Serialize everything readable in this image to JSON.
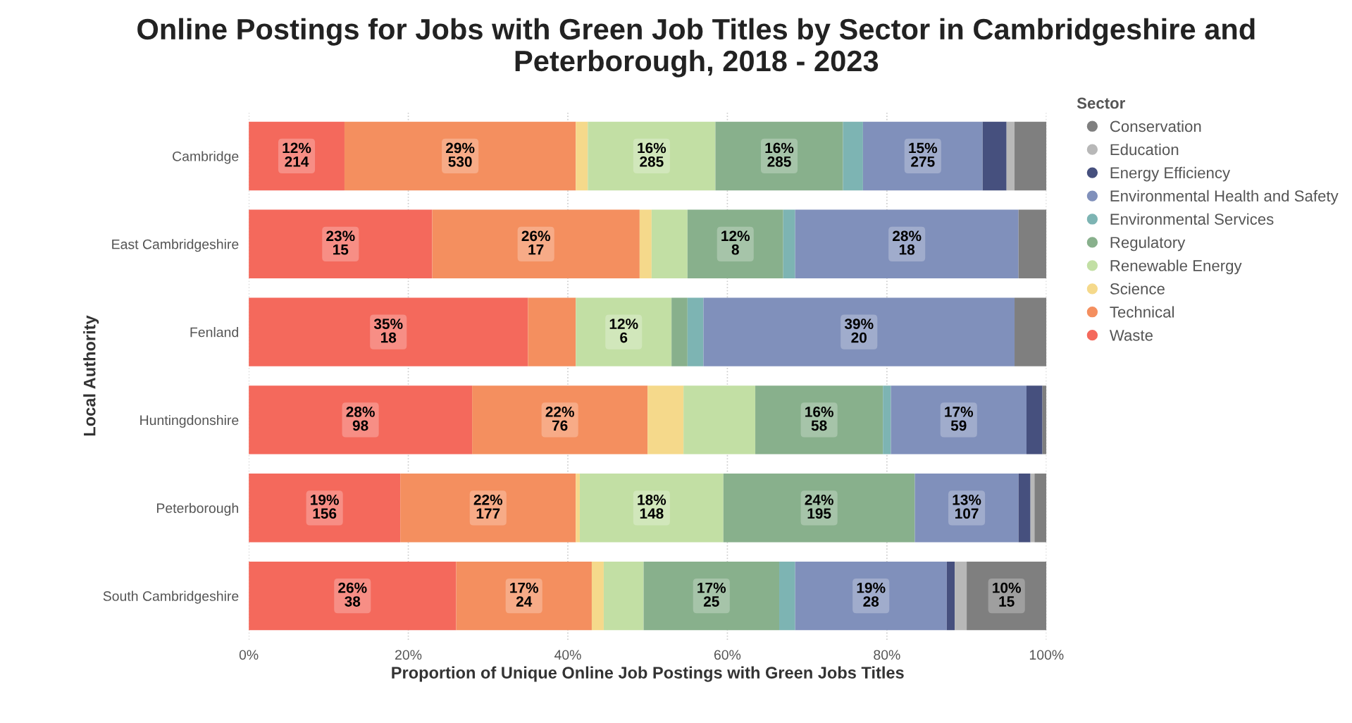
{
  "chart_data": {
    "type": "bar",
    "orientation": "horizontal",
    "stacked": true,
    "title": "Online Postings for Jobs with Green Job Titles by Sector in Cambridgeshire and Peterborough, 2018 - 2023",
    "xlabel": "Proportion of Unique Online Job Postings with Green Jobs Titles",
    "ylabel": "Local Authority",
    "legend_title": "Sector",
    "categories": [
      "Cambridge",
      "East Cambridgeshire",
      "Fenland",
      "Huntingdonshire",
      "Peterborough",
      "South Cambridgeshire"
    ],
    "xlim": [
      0,
      100
    ],
    "xticks": [
      {
        "value": 0,
        "label": "0%"
      },
      {
        "value": 20,
        "label": "20%"
      },
      {
        "value": 40,
        "label": "40%"
      },
      {
        "value": 60,
        "label": "60%"
      },
      {
        "value": 80,
        "label": "80%"
      },
      {
        "value": 100,
        "label": "100%"
      }
    ],
    "grid": "x",
    "legend": "right",
    "marker": "circle",
    "series": [
      {
        "name": "Waste",
        "color": "#f4695c",
        "values": [
          12,
          23,
          35,
          28,
          19,
          26
        ],
        "value_labels": [
          "12%\n214",
          "23%\n15",
          "35%\n18",
          "28%\n98",
          "19%\n156",
          "26%\n38"
        ]
      },
      {
        "name": "Technical",
        "color": "#f48f5f",
        "values": [
          29,
          26,
          6,
          22,
          22,
          17
        ],
        "value_labels": [
          "29%\n530",
          "26%\n17",
          null,
          "22%\n76",
          "22%\n177",
          "17%\n24"
        ]
      },
      {
        "name": "Science",
        "color": "#f5d98b",
        "values": [
          1.5,
          1.5,
          null,
          4.5,
          0.5,
          1.5
        ],
        "value_labels": [
          null,
          null,
          null,
          null,
          null,
          null
        ]
      },
      {
        "name": "Renewable Energy",
        "color": "#c2dfa4",
        "values": [
          16,
          4.5,
          12,
          9,
          18,
          5
        ],
        "value_labels": [
          "16%\n285",
          null,
          "12%\n6",
          null,
          "18%\n148",
          null
        ]
      },
      {
        "name": "Regulatory",
        "color": "#88b08c",
        "values": [
          16,
          12,
          2,
          16,
          24,
          17
        ],
        "value_labels": [
          "16%\n285",
          "12%\n8",
          null,
          "16%\n58",
          "24%\n195",
          "17%\n25"
        ]
      },
      {
        "name": "Environmental Services",
        "color": "#7db4b3",
        "values": [
          2.5,
          1.5,
          2,
          1,
          null,
          2
        ],
        "value_labels": [
          null,
          null,
          null,
          null,
          null,
          null
        ]
      },
      {
        "name": "Environmental Health and Safety",
        "color": "#8090bb",
        "values": [
          15,
          28,
          39,
          17,
          13,
          19
        ],
        "value_labels": [
          "15%\n275",
          "28%\n18",
          "39%\n20",
          "17%\n59",
          "13%\n107",
          "19%\n28"
        ]
      },
      {
        "name": "Energy Efficiency",
        "color": "#46507e",
        "values": [
          3,
          null,
          null,
          2,
          1.5,
          1
        ],
        "value_labels": [
          null,
          null,
          null,
          null,
          null,
          null
        ]
      },
      {
        "name": "Education",
        "color": "#b8b8b8",
        "values": [
          1,
          null,
          null,
          null,
          0.5,
          1.5
        ],
        "value_labels": [
          null,
          null,
          null,
          null,
          null,
          null
        ]
      },
      {
        "name": "Conservation",
        "color": "#7f7f7f",
        "values": [
          4,
          3.5,
          4,
          0.5,
          1.5,
          10
        ],
        "value_labels": [
          null,
          null,
          null,
          null,
          null,
          "10%\n15"
        ]
      }
    ]
  }
}
